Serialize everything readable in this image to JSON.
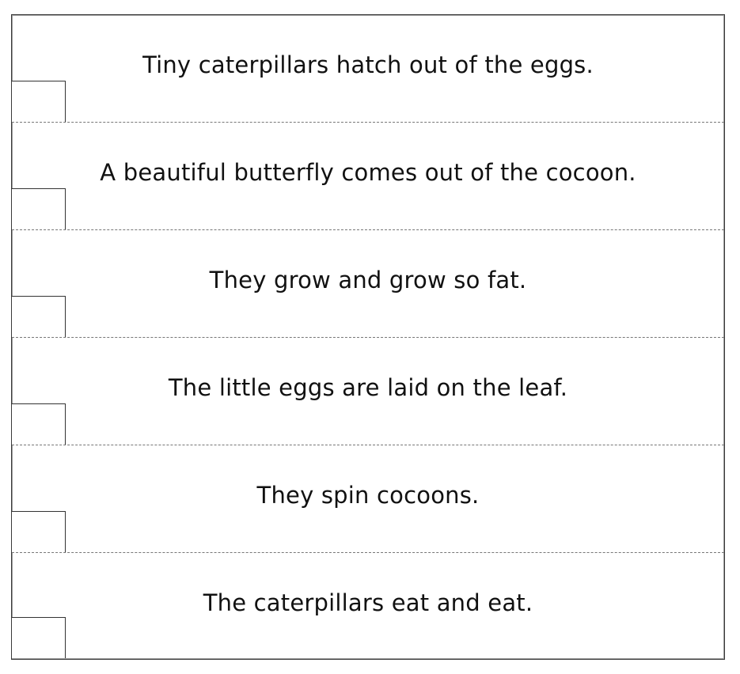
{
  "worksheet": {
    "strips": [
      {
        "text": "Tiny caterpillars hatch out of the eggs.",
        "box_value": ""
      },
      {
        "text": "A beautiful butterfly comes out of the cocoon.",
        "box_value": ""
      },
      {
        "text": "They grow and grow so fat.",
        "box_value": ""
      },
      {
        "text": "The little eggs are laid on the leaf.",
        "box_value": ""
      },
      {
        "text": "They spin cocoons.",
        "box_value": ""
      },
      {
        "text": "The caterpillars eat and eat.",
        "box_value": ""
      }
    ]
  }
}
